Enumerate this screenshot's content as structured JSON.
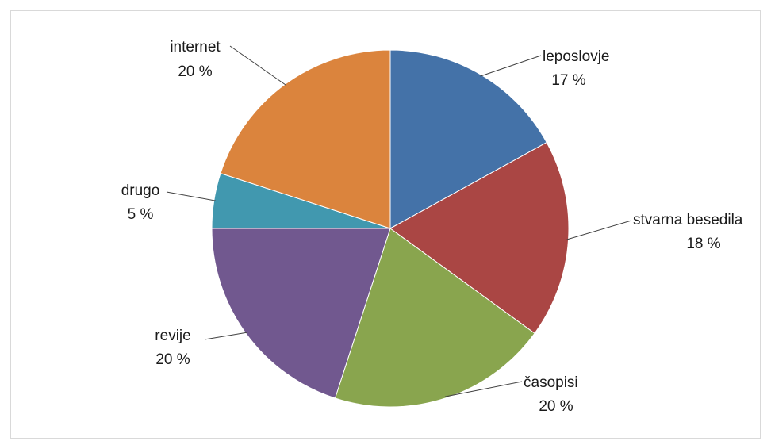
{
  "chart_data": {
    "type": "pie",
    "title": "",
    "categories": [
      "leposlovje",
      "stvarna besedila",
      "časopisi",
      "revije",
      "drugo",
      "internet"
    ],
    "values": [
      17,
      18,
      20,
      20,
      5,
      20
    ],
    "value_labels": [
      "17 %",
      "18 %",
      "20 %",
      "20 %",
      "5 %",
      "20 %"
    ],
    "colors": [
      "#4472a8",
      "#aa4644",
      "#89a54e",
      "#71588f",
      "#4198af",
      "#db843d"
    ],
    "start_angle_deg": 0,
    "direction": "clockwise",
    "legend": "none",
    "labels": "outside-with-leader-lines"
  }
}
